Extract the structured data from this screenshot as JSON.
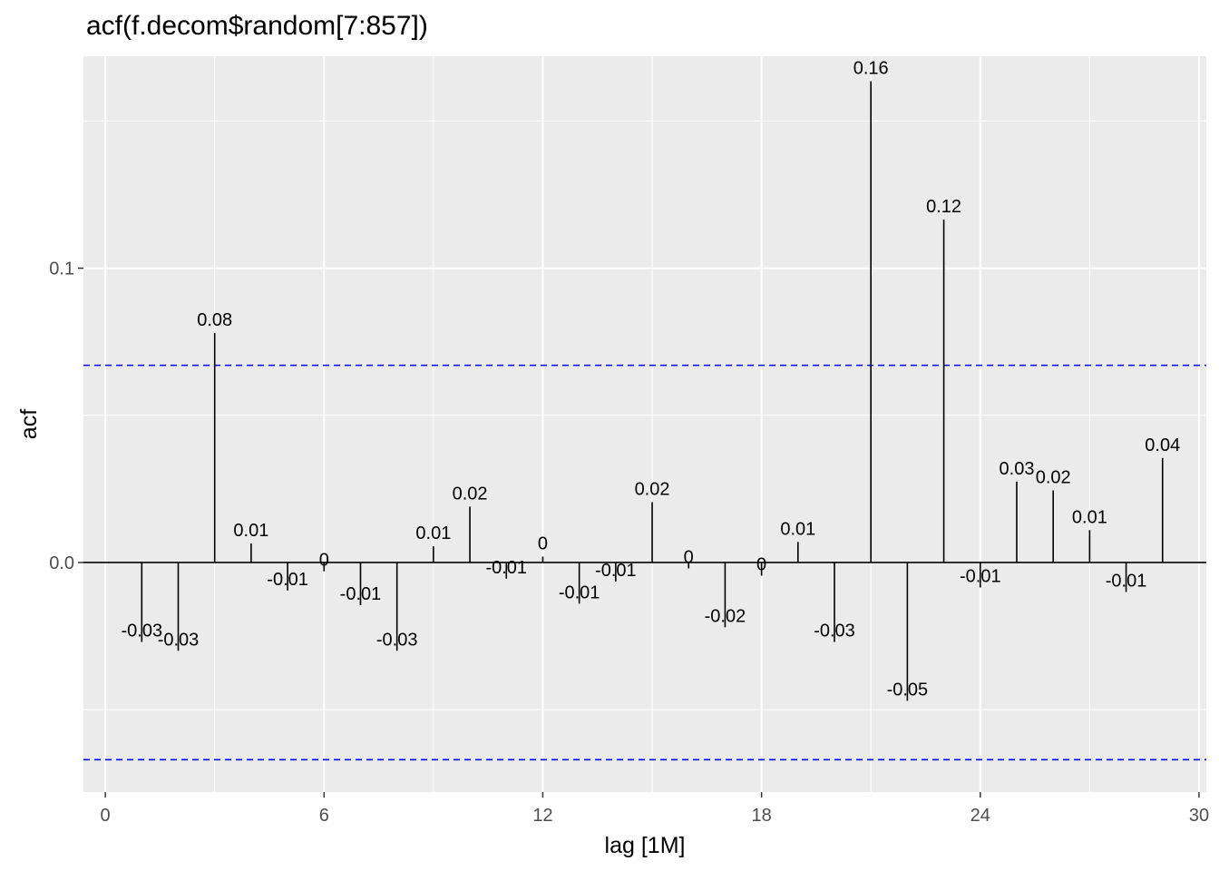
{
  "chart_data": {
    "type": "bar",
    "title": "acf(f.decom$random[7:857])",
    "xlabel": "lag [1M]",
    "ylabel": "acf",
    "xlim": [
      -0.6,
      30.2
    ],
    "ylim": [
      -0.078,
      0.172
    ],
    "x_ticks": [
      0,
      6,
      12,
      18,
      24,
      30
    ],
    "x_tick_labels": [
      "0",
      "6",
      "12",
      "18",
      "24",
      "30"
    ],
    "y_ticks": [
      0.0,
      0.1
    ],
    "y_tick_labels": [
      "0.0",
      "0.1"
    ],
    "grid": true,
    "confidence_bounds": [
      0.067,
      -0.067
    ],
    "lags": [
      1,
      2,
      3,
      4,
      5,
      6,
      7,
      8,
      9,
      10,
      11,
      12,
      13,
      14,
      15,
      16,
      17,
      18,
      19,
      20,
      21,
      22,
      23,
      24,
      25,
      26,
      27,
      28,
      29
    ],
    "values": [
      -0.027,
      -0.03,
      0.078,
      0.0065,
      -0.0095,
      -0.003,
      -0.0145,
      -0.03,
      0.0055,
      0.019,
      -0.0055,
      0.002,
      -0.014,
      -0.0065,
      0.0205,
      -0.002,
      -0.022,
      -0.0045,
      0.007,
      -0.027,
      0.1635,
      -0.047,
      0.1165,
      -0.0085,
      0.0275,
      0.0245,
      0.011,
      -0.01,
      0.0355
    ],
    "value_labels": [
      "-0.03",
      "-0.03",
      "0.08",
      "0.01",
      "-0.01",
      "0",
      "-0.01",
      "-0.03",
      "0.01",
      "0.02",
      "-0.01",
      "0",
      "-0.01",
      "-0.01",
      "0.02",
      "0",
      "-0.02",
      "0",
      "0.01",
      "-0.03",
      "0.16",
      "-0.05",
      "0.12",
      "-0.01",
      "0.03",
      "0.02",
      "0.01",
      "-0.01",
      "0.04"
    ],
    "colors": {
      "panel": "#ebebeb",
      "grid": "#ffffff",
      "bars": "#000000",
      "bounds": "#0000ff",
      "tick_text": "#4d4d4d"
    }
  }
}
